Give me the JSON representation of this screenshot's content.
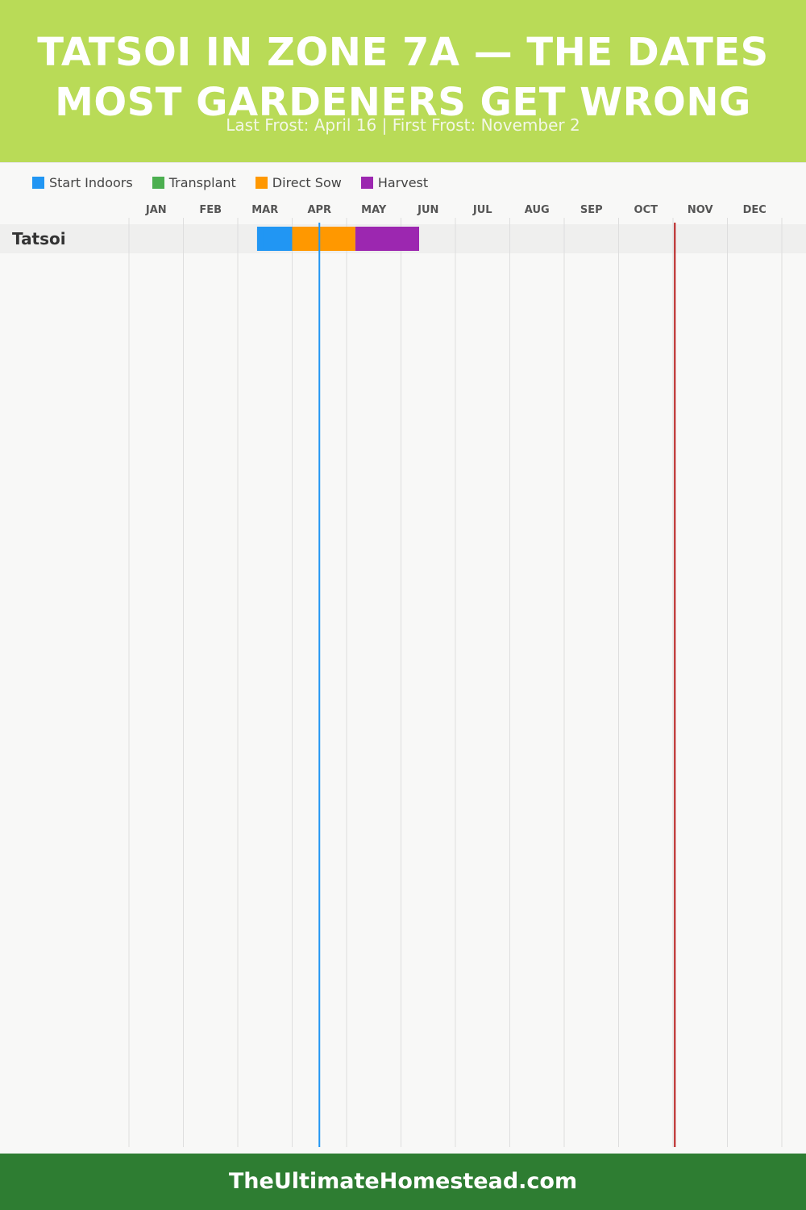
{
  "header": {
    "title": "TATSOI IN ZONE 7A — THE DATES MOST GARDENERS GET WRONG",
    "subtitle": "Last Frost: April 16 | First Frost: November 2"
  },
  "footer": {
    "site": "TheUltimateHomestead.com"
  },
  "colors": {
    "header_bg": "#b9db57",
    "footer_bg": "#2e7d32",
    "start_indoors": "#2196f3",
    "transplant": "#4caf50",
    "direct_sow": "#ff9800",
    "harvest": "#9c27b0",
    "last_frost_line": "#2196f3",
    "first_frost_line": "#b71c1c"
  },
  "chart_data": {
    "type": "gantt",
    "title": "TATSOI IN ZONE 7A — THE DATES MOST GARDENERS GET WRONG",
    "subtitle": "Last Frost: April 16 | First Frost: November 2",
    "legend": [
      {
        "key": "start_indoors",
        "label": "Start Indoors"
      },
      {
        "key": "transplant",
        "label": "Transplant"
      },
      {
        "key": "direct_sow",
        "label": "Direct Sow"
      },
      {
        "key": "harvest",
        "label": "Harvest"
      }
    ],
    "legend_position": "top-left",
    "months": [
      "JAN",
      "FEB",
      "MAR",
      "APR",
      "MAY",
      "JUN",
      "JUL",
      "AUG",
      "SEP",
      "OCT",
      "NOV",
      "DEC"
    ],
    "grid": true,
    "markers": [
      {
        "name": "Last Frost",
        "date": "April 16",
        "color_key": "last_frost_line"
      },
      {
        "name": "First Frost",
        "date": "November 2",
        "color_key": "first_frost_line"
      }
    ],
    "rows": [
      {
        "crop": "Tatsoi",
        "segments": [
          {
            "phase": "start_indoors",
            "start": "March 12",
            "end": "March 31"
          },
          {
            "phase": "direct_sow",
            "start": "April 1",
            "end": "May 5"
          },
          {
            "phase": "harvest",
            "start": "May 6",
            "end": "June 10"
          }
        ]
      }
    ]
  }
}
